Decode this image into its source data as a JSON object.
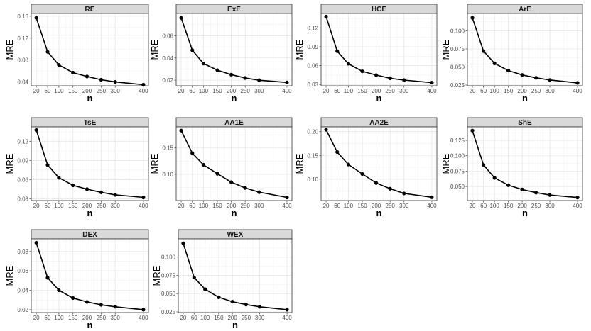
{
  "figure": {
    "background": "#ffffff",
    "strip_color": "#d9d9d9",
    "grid_color": "#e6e6e6",
    "line_color": "#000000"
  },
  "chart_data": [
    {
      "type": "line",
      "title": "RE",
      "xlabel": "n",
      "ylabel": "MRE",
      "x": [
        20,
        60,
        100,
        150,
        200,
        250,
        300,
        400
      ],
      "series": [
        {
          "values": [
            0.157,
            0.095,
            0.071,
            0.057,
            0.05,
            0.044,
            0.04,
            0.035
          ]
        }
      ],
      "xticks": [
        20,
        60,
        100,
        150,
        200,
        250,
        300,
        400
      ],
      "ylim": [
        0.033,
        0.165
      ],
      "yticks": [
        0.04,
        0.08,
        0.12,
        0.16
      ],
      "ytick_labels": [
        "0.04",
        "0.08",
        "0.12",
        "0.16"
      ],
      "grid": true
    },
    {
      "type": "line",
      "title": "ExE",
      "xlabel": "n",
      "ylabel": "MRE",
      "x": [
        20,
        60,
        100,
        150,
        200,
        250,
        300,
        400
      ],
      "series": [
        {
          "values": [
            0.076,
            0.047,
            0.035,
            0.029,
            0.025,
            0.022,
            0.02,
            0.018
          ]
        }
      ],
      "xticks": [
        20,
        60,
        100,
        150,
        200,
        250,
        300,
        400
      ],
      "ylim": [
        0.015,
        0.08
      ],
      "yticks": [
        0.02,
        0.04,
        0.06
      ],
      "ytick_labels": [
        "0.02",
        "0.04",
        "0.06"
      ],
      "grid": true
    },
    {
      "type": "line",
      "title": "HCE",
      "xlabel": "n",
      "ylabel": "MRE",
      "x": [
        20,
        60,
        100,
        150,
        200,
        250,
        300,
        400
      ],
      "series": [
        {
          "values": [
            0.138,
            0.083,
            0.063,
            0.051,
            0.045,
            0.04,
            0.037,
            0.033
          ]
        }
      ],
      "xticks": [
        20,
        60,
        100,
        150,
        200,
        250,
        300,
        400
      ],
      "ylim": [
        0.028,
        0.143
      ],
      "yticks": [
        0.03,
        0.06,
        0.09,
        0.12
      ],
      "ytick_labels": [
        "0.03",
        "0.06",
        "0.09",
        "0.12"
      ],
      "grid": true
    },
    {
      "type": "line",
      "title": "ArE",
      "xlabel": "n",
      "ylabel": "MRE",
      "x": [
        20,
        60,
        100,
        150,
        200,
        250,
        300,
        400
      ],
      "series": [
        {
          "values": [
            0.118,
            0.072,
            0.055,
            0.045,
            0.039,
            0.035,
            0.032,
            0.028
          ]
        }
      ],
      "xticks": [
        20,
        60,
        100,
        150,
        200,
        250,
        300,
        400
      ],
      "ylim": [
        0.024,
        0.124
      ],
      "yticks": [
        0.025,
        0.05,
        0.075,
        0.1
      ],
      "ytick_labels": [
        "0.025",
        "0.050",
        "0.075",
        "0.100"
      ],
      "grid": true
    },
    {
      "type": "line",
      "title": "TsE",
      "xlabel": "n",
      "ylabel": "MRE",
      "x": [
        20,
        60,
        100,
        150,
        200,
        250,
        300,
        400
      ],
      "series": [
        {
          "values": [
            0.138,
            0.083,
            0.063,
            0.051,
            0.045,
            0.04,
            0.036,
            0.032
          ]
        }
      ],
      "xticks": [
        20,
        60,
        100,
        150,
        200,
        250,
        300,
        400
      ],
      "ylim": [
        0.027,
        0.143
      ],
      "yticks": [
        0.03,
        0.06,
        0.09,
        0.12
      ],
      "ytick_labels": [
        "0.03",
        "0.06",
        "0.09",
        "0.12"
      ],
      "grid": true
    },
    {
      "type": "line",
      "title": "AA1E",
      "xlabel": "n",
      "ylabel": "MRE",
      "x": [
        20,
        60,
        100,
        150,
        200,
        250,
        300,
        400
      ],
      "series": [
        {
          "values": [
            0.183,
            0.14,
            0.118,
            0.101,
            0.085,
            0.074,
            0.066,
            0.056
          ]
        }
      ],
      "xticks": [
        20,
        60,
        100,
        150,
        200,
        250,
        300,
        400
      ],
      "ylim": [
        0.05,
        0.19
      ],
      "yticks": [
        0.1,
        0.15
      ],
      "ytick_labels": [
        "0.10",
        "0.15"
      ],
      "grid": true
    },
    {
      "type": "line",
      "title": "AA2E",
      "xlabel": "n",
      "ylabel": "MRE",
      "x": [
        20,
        60,
        100,
        150,
        200,
        250,
        300,
        400
      ],
      "series": [
        {
          "values": [
            0.204,
            0.157,
            0.131,
            0.111,
            0.092,
            0.08,
            0.07,
            0.062
          ]
        }
      ],
      "xticks": [
        20,
        60,
        100,
        150,
        200,
        250,
        300,
        400
      ],
      "ylim": [
        0.055,
        0.21
      ],
      "yticks": [
        0.1,
        0.15,
        0.2
      ],
      "ytick_labels": [
        "0.10",
        "0.15",
        "0.20"
      ],
      "grid": true
    },
    {
      "type": "line",
      "title": "ShE",
      "xlabel": "n",
      "ylabel": "MRE",
      "x": [
        20,
        60,
        100,
        150,
        200,
        250,
        300,
        400
      ],
      "series": [
        {
          "values": [
            0.141,
            0.085,
            0.064,
            0.052,
            0.045,
            0.04,
            0.036,
            0.032
          ]
        }
      ],
      "xticks": [
        20,
        60,
        100,
        150,
        200,
        250,
        300,
        400
      ],
      "ylim": [
        0.027,
        0.147
      ],
      "yticks": [
        0.05,
        0.075,
        0.1,
        0.125
      ],
      "ytick_labels": [
        "0.050",
        "0.075",
        "0.100",
        "0.125"
      ],
      "grid": true
    },
    {
      "type": "line",
      "title": "DEX",
      "xlabel": "n",
      "ylabel": "MRE",
      "x": [
        20,
        60,
        100,
        150,
        200,
        250,
        300,
        400
      ],
      "series": [
        {
          "values": [
            0.089,
            0.053,
            0.04,
            0.032,
            0.028,
            0.025,
            0.023,
            0.02
          ]
        }
      ],
      "xticks": [
        20,
        60,
        100,
        150,
        200,
        250,
        300,
        400
      ],
      "ylim": [
        0.017,
        0.093
      ],
      "yticks": [
        0.02,
        0.04,
        0.06,
        0.08
      ],
      "ytick_labels": [
        "0.02",
        "0.04",
        "0.06",
        "0.08"
      ],
      "grid": true
    },
    {
      "type": "line",
      "title": "WEX",
      "xlabel": "n",
      "ylabel": "MRE",
      "x": [
        20,
        60,
        100,
        150,
        200,
        250,
        300,
        400
      ],
      "series": [
        {
          "values": [
            0.119,
            0.072,
            0.056,
            0.045,
            0.039,
            0.035,
            0.032,
            0.028
          ]
        }
      ],
      "xticks": [
        20,
        60,
        100,
        150,
        200,
        250,
        300,
        400
      ],
      "ylim": [
        0.024,
        0.125
      ],
      "yticks": [
        0.025,
        0.05,
        0.075,
        0.1
      ],
      "ytick_labels": [
        "0.025",
        "0.050",
        "0.075",
        "0.100"
      ],
      "grid": true
    }
  ]
}
